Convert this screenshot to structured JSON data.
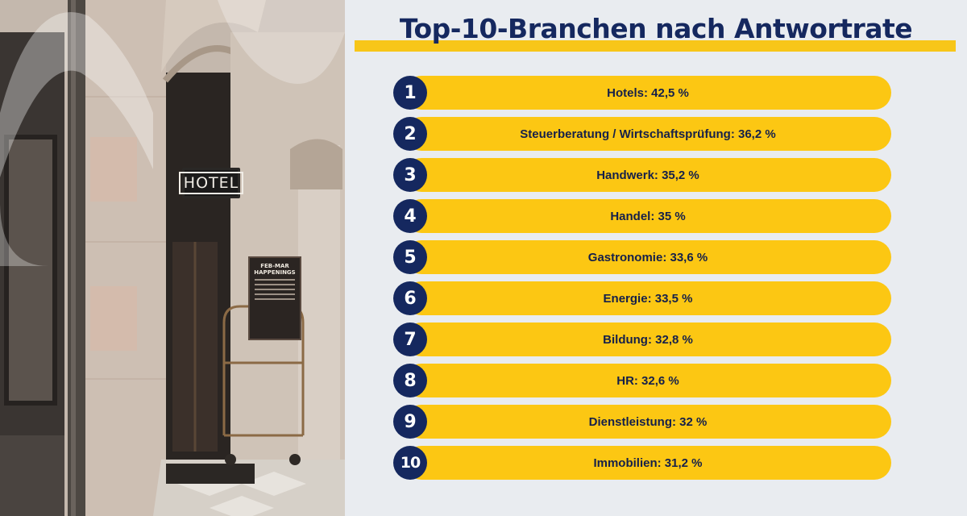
{
  "title": "Top-10-Branchen nach Antwortrate",
  "colors": {
    "accent": "#fcc713",
    "navy": "#15285f",
    "background": "#e9ecf0"
  },
  "photo": {
    "sign_text": "HOTEL",
    "poster_text": "FEB-MAR HAPPENINGS"
  },
  "ranking": [
    {
      "rank": "1",
      "label": "Hotels: 42,5 %"
    },
    {
      "rank": "2",
      "label": "Steuerberatung / Wirtschaftsprüfung: 36,2 %"
    },
    {
      "rank": "3",
      "label": "Handwerk: 35,2 %"
    },
    {
      "rank": "4",
      "label": "Handel: 35 %"
    },
    {
      "rank": "5",
      "label": "Gastronomie: 33,6 %"
    },
    {
      "rank": "6",
      "label": "Energie: 33,5 %"
    },
    {
      "rank": "7",
      "label": "Bildung: 32,8 %"
    },
    {
      "rank": "8",
      "label": "HR: 32,6 %"
    },
    {
      "rank": "9",
      "label": "Dienstleistung: 32 %"
    },
    {
      "rank": "10",
      "label": "Immobilien: 31,2 %"
    }
  ]
}
